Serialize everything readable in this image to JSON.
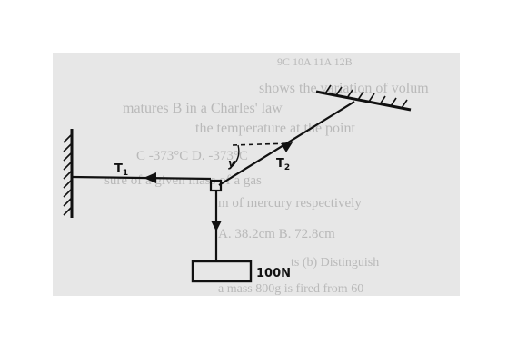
{
  "diagram": {
    "labels": {
      "tension_left": "T",
      "tension_left_sub": "1",
      "tension_right": "T",
      "tension_right_sub": "2",
      "angle": "y",
      "weight": "100N"
    },
    "bleed_through_text": [
      "9C  10A  11A  12B",
      "shows the variation of volum",
      "matures B in a Charles' law",
      "the temperature at the point",
      "C -373°C  D. -373°C",
      "sure of a given mass of a gas",
      "m of mercury respectively",
      "A. 38.2cm  B. 72.8cm",
      "ts (b) Distinguish",
      "a mass 800g is fired from 60"
    ],
    "colors": {
      "ink": "#111111",
      "paper": "#e7e7e7",
      "ghost": "#b9b9b9"
    }
  }
}
